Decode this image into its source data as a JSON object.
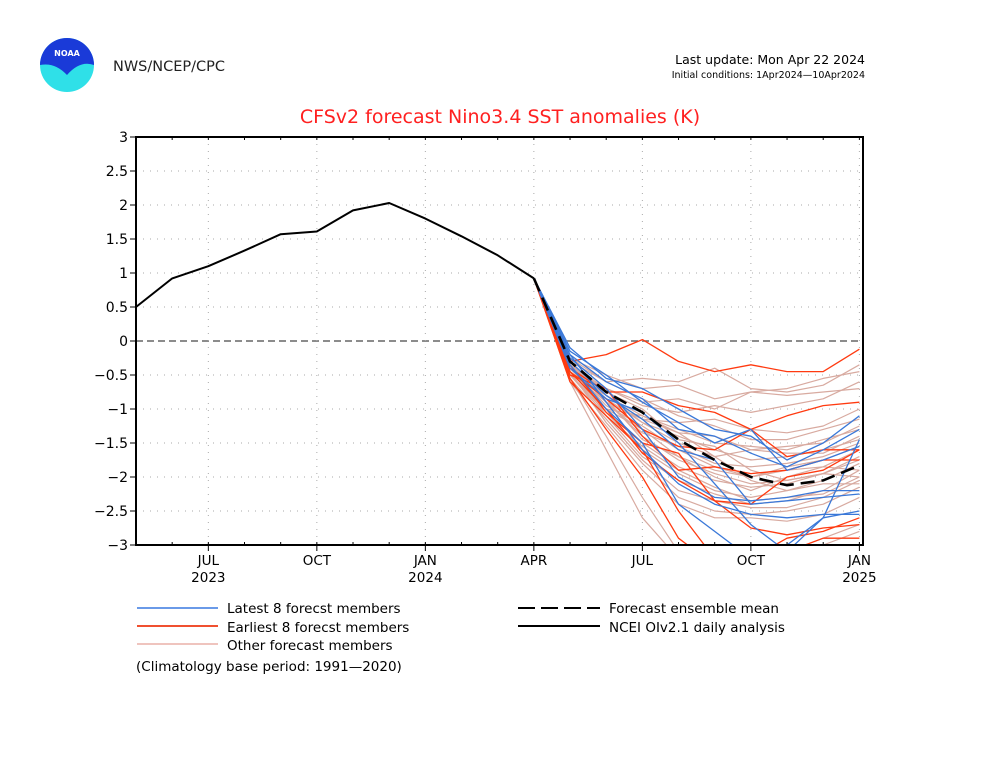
{
  "header": {
    "org": "NWS/NCEP/CPC",
    "logo_text": "NOAA",
    "last_update": "Last update: Mon Apr 22 2024",
    "initial_conditions": "Initial conditions: 1Apr2024—10Apr2024"
  },
  "colors": {
    "title": "#ff2020",
    "latest": "#3a78d8",
    "earliest": "#ff3a10",
    "other": "#d8aaa0",
    "observed": "#000000",
    "mean": "#000000"
  },
  "chart_data": {
    "type": "line",
    "title": "CFSv2 forecast Nino3.4 SST anomalies (K)",
    "xlabel": "",
    "ylabel": "",
    "ylim": [
      -3,
      3
    ],
    "yticks": [
      3,
      2.5,
      2,
      1.5,
      1,
      0.5,
      0,
      -0.5,
      -1,
      -1.5,
      -2,
      -2.5,
      -3
    ],
    "ytick_labels": [
      "3",
      "2.5",
      "2",
      "1.5",
      "1",
      "0.5",
      "0",
      "−0.5",
      "−1",
      "−1.5",
      "−2",
      "−2.5",
      "−3"
    ],
    "xlim_months": [
      0,
      20.1
    ],
    "x_unit": "months since May 2023",
    "xticks": [
      {
        "m": 2,
        "label": "JUL",
        "year": "2023"
      },
      {
        "m": 5,
        "label": "OCT",
        "year": ""
      },
      {
        "m": 8,
        "label": "JAN",
        "year": "2024"
      },
      {
        "m": 11,
        "label": "APR",
        "year": ""
      },
      {
        "m": 14,
        "label": "JUL",
        "year": ""
      },
      {
        "m": 17,
        "label": "OCT",
        "year": ""
      },
      {
        "m": 20,
        "label": "JAN",
        "year": "2025"
      }
    ],
    "grid": true,
    "zero_line": "dashed",
    "legend": {
      "position": "bottom",
      "entries": [
        {
          "label": "Latest 8 forecst members",
          "style": "latest"
        },
        {
          "label": "Earliest 8 forecst members",
          "style": "earliest"
        },
        {
          "label": "Other forecast members",
          "style": "other"
        },
        {
          "label": "Forecast ensemble mean",
          "style": "mean"
        },
        {
          "label": "NCEI OIv2.1 daily analysis",
          "style": "observed"
        }
      ]
    },
    "footnote": "(Climatology base period: 1991—2020)",
    "observed": {
      "name": "NCEI OIv2.1 daily analysis",
      "x": [
        0,
        1,
        2,
        3,
        4,
        5,
        6,
        7,
        8,
        9,
        10,
        11
      ],
      "y": [
        0.5,
        0.92,
        1.1,
        1.33,
        1.57,
        1.61,
        1.92,
        2.03,
        1.8,
        1.54,
        1.26,
        0.92
      ]
    },
    "forecast_x": [
      11,
      12,
      13,
      14,
      15,
      16,
      17,
      18,
      19,
      20
    ],
    "ensemble_mean": [
      0.92,
      -0.3,
      -0.75,
      -1.05,
      -1.45,
      -1.75,
      -2.0,
      -2.12,
      -2.05,
      -1.83
    ],
    "latest_members": [
      [
        0.92,
        -0.1,
        -0.55,
        -0.7,
        -1.0,
        -1.3,
        -1.4,
        -1.75,
        -1.5,
        -1.1
      ],
      [
        0.92,
        -0.2,
        -0.6,
        -0.85,
        -1.3,
        -1.4,
        -1.65,
        -1.85,
        -1.6,
        -1.3
      ],
      [
        0.92,
        -0.15,
        -0.5,
        -0.9,
        -1.2,
        -1.5,
        -1.3,
        -1.9,
        -1.75,
        -1.55
      ],
      [
        0.92,
        -0.3,
        -0.8,
        -1.15,
        -1.6,
        -1.75,
        -2.4,
        -2.35,
        -2.3,
        -2.25
      ],
      [
        0.92,
        -0.25,
        -0.7,
        -1.3,
        -2.0,
        -2.3,
        -2.35,
        -2.3,
        -2.2,
        -2.2
      ],
      [
        0.92,
        -0.4,
        -0.85,
        -1.05,
        -1.5,
        -2.1,
        -2.7,
        -3.1,
        -2.6,
        -1.45
      ],
      [
        0.92,
        -0.35,
        -1.0,
        -1.5,
        -2.4,
        -2.8,
        -3.2,
        -3.0,
        -2.6,
        -2.5
      ],
      [
        0.92,
        -0.2,
        -0.9,
        -1.6,
        -2.1,
        -2.4,
        -2.55,
        -2.6,
        -2.55,
        -2.55
      ]
    ],
    "earliest_members": [
      [
        0.92,
        -0.3,
        -0.2,
        0.02,
        -0.3,
        -0.45,
        -0.35,
        -0.45,
        -0.45,
        -0.12
      ],
      [
        0.92,
        -0.4,
        -0.75,
        -0.75,
        -0.95,
        -1.05,
        -1.3,
        -1.1,
        -0.95,
        -0.9
      ],
      [
        0.92,
        -0.45,
        -0.85,
        -1.3,
        -1.55,
        -1.6,
        -1.3,
        -1.7,
        -1.6,
        -1.6
      ],
      [
        0.92,
        -0.35,
        -1.05,
        -1.5,
        -1.65,
        -2.35,
        -2.4,
        -2.0,
        -1.9,
        -1.6
      ],
      [
        0.92,
        -0.5,
        -0.7,
        -1.4,
        -1.9,
        -1.85,
        -1.95,
        -1.9,
        -1.75,
        -1.75
      ],
      [
        0.92,
        -0.6,
        -1.1,
        -1.6,
        -2.5,
        -3.2,
        -3.4,
        -3.1,
        -2.9,
        -2.9
      ],
      [
        0.92,
        -0.55,
        -1.3,
        -2.0,
        -2.9,
        -3.3,
        -3.2,
        -2.9,
        -2.8,
        -2.6
      ],
      [
        0.92,
        -0.45,
        -1.0,
        -1.65,
        -2.05,
        -2.35,
        -2.75,
        -2.85,
        -2.75,
        -2.7
      ]
    ],
    "other_members": [
      [
        0.92,
        -0.3,
        -0.6,
        -0.55,
        -0.6,
        -0.4,
        -0.7,
        -0.75,
        -0.65,
        -0.35
      ],
      [
        0.92,
        -0.25,
        -0.5,
        -0.7,
        -0.65,
        -0.85,
        -0.75,
        -0.7,
        -0.55,
        -0.45
      ],
      [
        0.92,
        -0.4,
        -0.7,
        -0.9,
        -0.85,
        -1.0,
        -0.75,
        -0.8,
        -0.75,
        -0.7
      ],
      [
        0.92,
        -0.35,
        -0.7,
        -0.95,
        -1.05,
        -0.95,
        -1.05,
        -0.95,
        -0.85,
        -0.6
      ],
      [
        0.92,
        -0.5,
        -0.8,
        -1.15,
        -1.2,
        -1.15,
        -1.3,
        -1.35,
        -1.25,
        -1.0
      ],
      [
        0.92,
        -0.45,
        -1.0,
        -1.1,
        -1.35,
        -1.4,
        -1.6,
        -1.55,
        -1.5,
        -1.25
      ],
      [
        0.92,
        -0.3,
        -0.8,
        -1.2,
        -1.5,
        -1.7,
        -1.6,
        -1.65,
        -1.65,
        -1.4
      ],
      [
        0.92,
        -0.35,
        -0.9,
        -1.35,
        -1.55,
        -1.8,
        -1.85,
        -1.8,
        -1.7,
        -1.5
      ],
      [
        0.92,
        -0.4,
        -0.85,
        -1.45,
        -1.7,
        -1.9,
        -2.0,
        -1.9,
        -1.85,
        -1.6
      ],
      [
        0.92,
        -0.45,
        -1.0,
        -1.5,
        -1.85,
        -2.05,
        -2.15,
        -2.1,
        -1.95,
        -1.7
      ],
      [
        0.92,
        -0.5,
        -1.05,
        -1.6,
        -1.95,
        -2.2,
        -2.3,
        -2.2,
        -2.05,
        -1.8
      ],
      [
        0.92,
        -0.35,
        -1.1,
        -1.7,
        -2.05,
        -2.25,
        -2.4,
        -2.35,
        -2.2,
        -1.9
      ],
      [
        0.92,
        -0.55,
        -1.15,
        -1.75,
        -2.2,
        -2.35,
        -2.45,
        -2.45,
        -2.3,
        -2.05
      ],
      [
        0.92,
        -0.45,
        -1.2,
        -1.8,
        -2.3,
        -2.5,
        -2.55,
        -2.5,
        -2.4,
        -2.15
      ],
      [
        0.92,
        -0.6,
        -1.25,
        -1.9,
        -2.4,
        -2.6,
        -2.6,
        -2.65,
        -2.55,
        -2.3
      ],
      [
        0.92,
        -0.5,
        -1.0,
        -1.3,
        -1.7,
        -2.0,
        -2.2,
        -2.0,
        -1.85,
        -1.9
      ],
      [
        0.92,
        -0.35,
        -0.75,
        -1.0,
        -1.45,
        -1.55,
        -1.9,
        -2.05,
        -1.95,
        -2.0
      ],
      [
        0.92,
        -0.3,
        -0.9,
        -1.15,
        -1.35,
        -1.7,
        -2.05,
        -2.2,
        -2.1,
        -2.1
      ],
      [
        0.92,
        -0.55,
        -1.4,
        -2.3,
        -3.1,
        -3.3,
        -3.4,
        -3.2,
        -3.0,
        -2.8
      ],
      [
        0.92,
        -0.6,
        -1.6,
        -2.6,
        -3.2,
        -3.4,
        -3.3,
        -3.1,
        -2.9,
        -2.7
      ],
      [
        0.92,
        -0.25,
        -0.6,
        -0.85,
        -1.1,
        -1.25,
        -1.45,
        -1.45,
        -1.3,
        -1.15
      ],
      [
        0.92,
        -0.4,
        -0.95,
        -1.25,
        -1.6,
        -1.85,
        -2.0,
        -1.85,
        -1.75,
        -1.55
      ],
      [
        0.92,
        -0.45,
        -0.9,
        -1.4,
        -1.75,
        -1.95,
        -2.1,
        -2.05,
        -1.95,
        -1.75
      ],
      [
        0.92,
        -0.5,
        -1.1,
        -1.55,
        -1.9,
        -2.15,
        -2.35,
        -2.3,
        -2.25,
        -2.0
      ],
      [
        0.92,
        -0.35,
        -0.85,
        -1.2,
        -1.4,
        -1.6,
        -1.75,
        -1.7,
        -1.6,
        -1.45
      ],
      [
        0.92,
        -0.4,
        -0.8,
        -1.1,
        -1.3,
        -1.5,
        -1.55,
        -1.6,
        -1.45,
        -1.3
      ]
    ]
  }
}
